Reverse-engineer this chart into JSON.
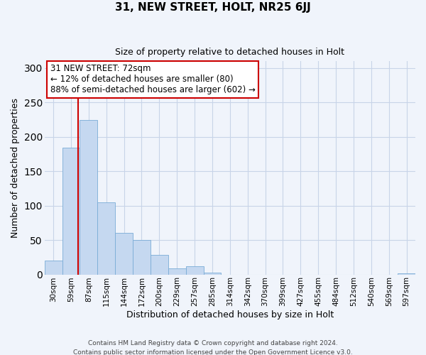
{
  "title": "31, NEW STREET, HOLT, NR25 6JJ",
  "subtitle": "Size of property relative to detached houses in Holt",
  "xlabel": "Distribution of detached houses by size in Holt",
  "ylabel": "Number of detached properties",
  "bar_labels": [
    "30sqm",
    "59sqm",
    "87sqm",
    "115sqm",
    "144sqm",
    "172sqm",
    "200sqm",
    "229sqm",
    "257sqm",
    "285sqm",
    "314sqm",
    "342sqm",
    "370sqm",
    "399sqm",
    "427sqm",
    "455sqm",
    "484sqm",
    "512sqm",
    "540sqm",
    "569sqm",
    "597sqm"
  ],
  "bar_values": [
    20,
    184,
    224,
    105,
    60,
    50,
    28,
    9,
    12,
    3,
    0,
    0,
    0,
    0,
    0,
    0,
    0,
    0,
    0,
    0,
    2
  ],
  "bar_color": "#c5d8f0",
  "bar_edgecolor": "#7aacd6",
  "ylim": [
    0,
    310
  ],
  "yticks": [
    0,
    50,
    100,
    150,
    200,
    250,
    300
  ],
  "vline_x": 1.42,
  "vline_color": "#cc0000",
  "annotation_title": "31 NEW STREET: 72sqm",
  "annotation_line1": "← 12% of detached houses are smaller (80)",
  "annotation_line2": "88% of semi-detached houses are larger (602) →",
  "annotation_box_color": "#cc0000",
  "footer1": "Contains HM Land Registry data © Crown copyright and database right 2024.",
  "footer2": "Contains public sector information licensed under the Open Government Licence v3.0.",
  "bg_color": "#f0f4fb",
  "grid_color": "#c8d4e8"
}
